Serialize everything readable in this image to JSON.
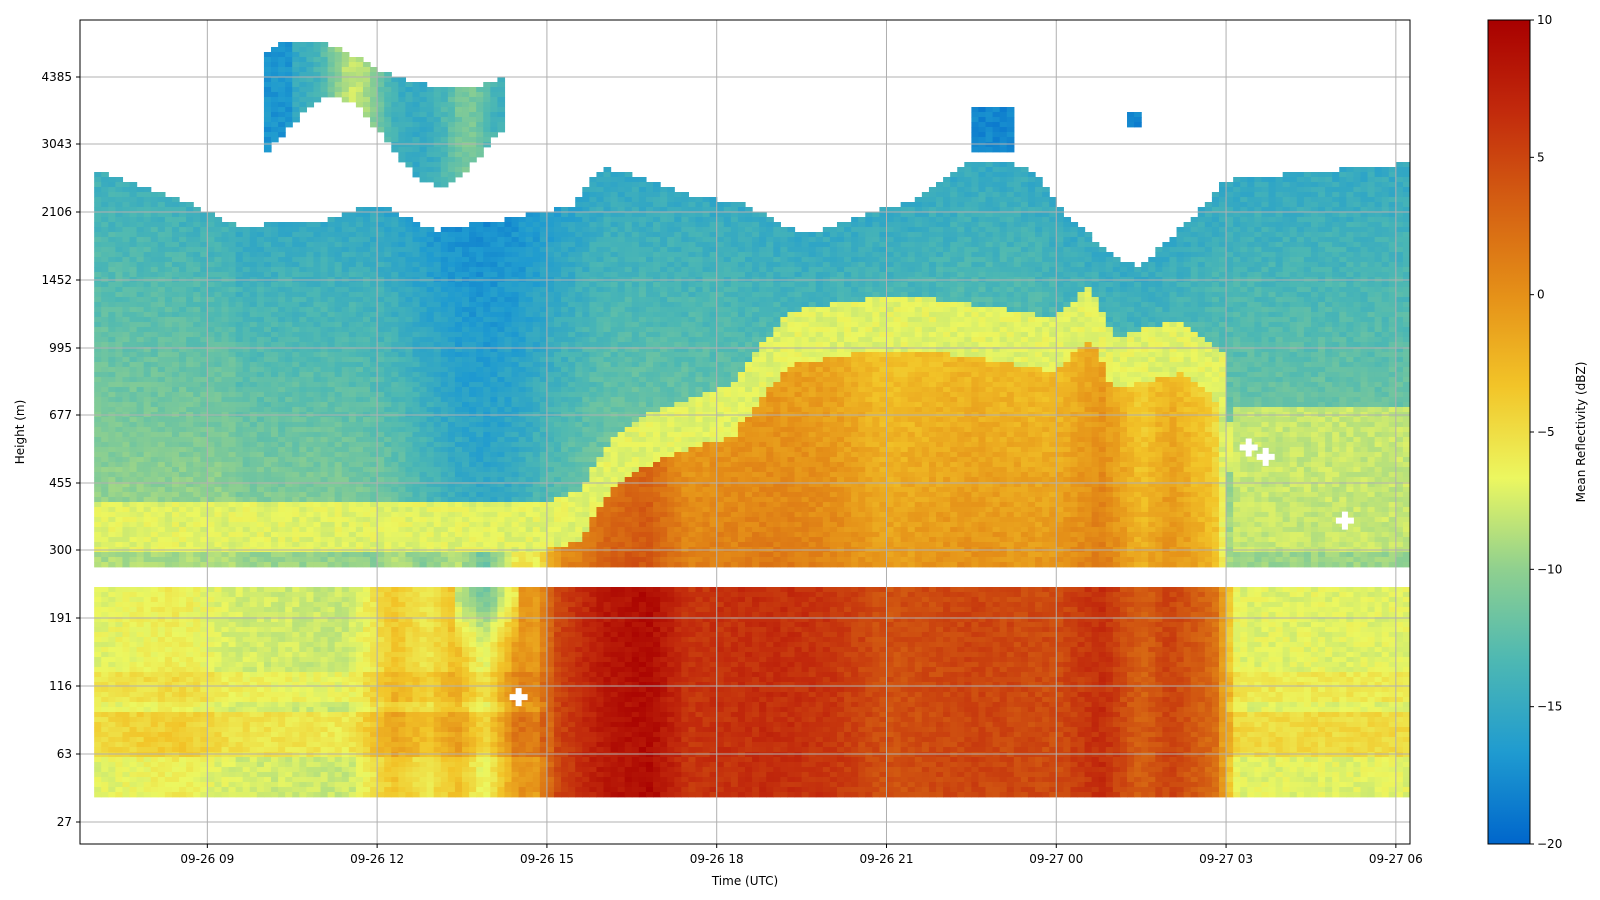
{
  "chart_data": {
    "type": "heatmap",
    "title": "",
    "xlabel": "Time (UTC)",
    "ylabel": "Height (m)",
    "x_tick_labels": [
      "09-26 09",
      "09-26 12",
      "09-26 15",
      "09-26 18",
      "09-26 21",
      "09-27 00",
      "09-27 03",
      "09-27 06"
    ],
    "x_tick_hours": [
      9,
      12,
      15,
      18,
      21,
      24,
      27,
      30
    ],
    "x_range_hours": [
      6.75,
      30.25
    ],
    "y_tick_labels": [
      "27",
      "63",
      "116",
      "191",
      "300",
      "455",
      "677",
      "995",
      "1452",
      "2106",
      "3043",
      "4385"
    ],
    "y_scale": "nonlinear (tick-indexed)",
    "grid": true,
    "colorbar": {
      "label": "Mean Reflectivity (dBZ)",
      "range": [
        -20,
        10
      ],
      "ticks": [
        "10",
        "5",
        "0",
        "−5",
        "−10",
        "−15",
        "−20"
      ],
      "tick_values": [
        10,
        5,
        0,
        -5,
        -10,
        -15,
        -20
      ],
      "colormap": [
        "#0066cc",
        "#1f9bd0",
        "#4db8b3",
        "#8fd08f",
        "#ecf760",
        "#f2c428",
        "#e59018",
        "#d45f12",
        "#c22a0c",
        "#a80000"
      ]
    },
    "no_data_band_height_m": [
      230,
      265
    ],
    "summary": "Low-level reflectivity (27–265 m) ranges from about −8 dBZ at 09-26 07–12 to a maximum near +9 dBZ around 09-26 16–17, staying +3 to +7 dBZ until 09-27 02 and returning to about −7 dBZ after 09-27 03. Above 300 m, an upper layer of −4 to +1 dBZ spans 09-26 16 to 09-27 03 up to roughly 1000 m. Cloud tops are at about 2000–2800 m, with a thin elevated layer near 3000–4800 m between 09-26 10 and 09-26 14."
  }
}
